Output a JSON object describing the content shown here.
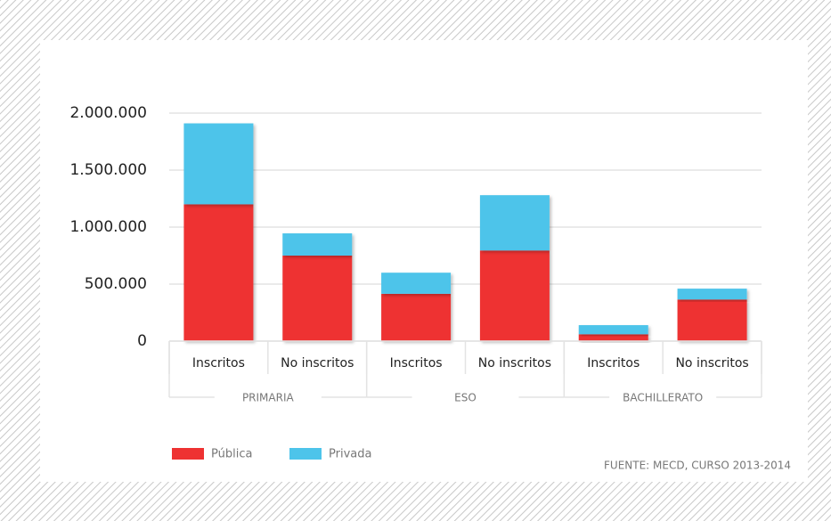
{
  "chart_data": {
    "type": "stacked_bar",
    "categories": [
      "Inscritos",
      "No inscritos",
      "Inscritos",
      "No inscritos",
      "Inscritos",
      "No inscritos"
    ],
    "groups": [
      "PRIMARIA",
      "ESO",
      "BACHILLERATO"
    ],
    "series": [
      {
        "name": "Pública",
        "color": "#ee3232",
        "values": [
          1200000,
          750000,
          415000,
          795000,
          60000,
          365000
        ]
      },
      {
        "name": "Privada",
        "color": "#4dc4ea",
        "values": [
          710000,
          195000,
          185000,
          485000,
          80000,
          95000
        ]
      }
    ],
    "ylim": [
      0,
      2000000
    ],
    "yticks": [
      0,
      {
        "value": 500000,
        "label": "500.000"
      },
      {
        "value": 1000000,
        "label": "1.000.000"
      },
      {
        "value": 1500000,
        "label": "1.500.000"
      },
      {
        "value": 2000000,
        "label": "2.000.000"
      }
    ],
    "grid": true,
    "source": "FUENTE: MECD, CURSO 2013-2014"
  }
}
